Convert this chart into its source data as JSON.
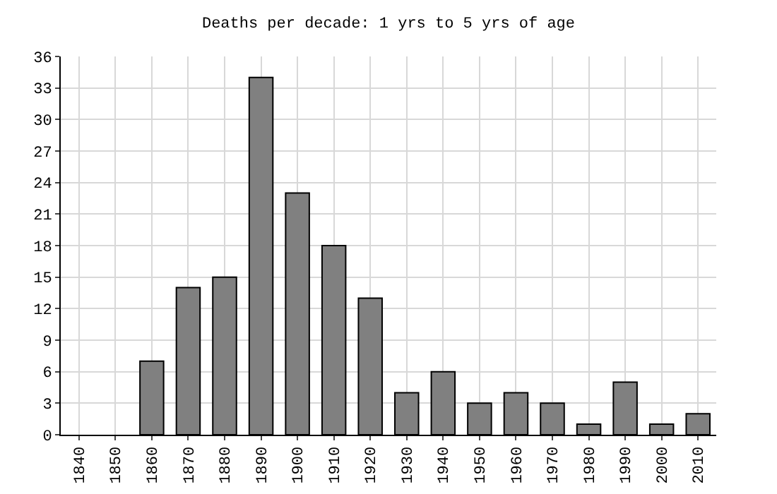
{
  "chart_data": {
    "type": "bar",
    "title": "Deaths per decade: 1 yrs to 5 yrs of age",
    "categories": [
      "1840",
      "1850",
      "1860",
      "1870",
      "1880",
      "1890",
      "1900",
      "1910",
      "1920",
      "1930",
      "1940",
      "1950",
      "1960",
      "1970",
      "1980",
      "1990",
      "2000",
      "2010"
    ],
    "values": [
      0,
      0,
      7,
      14,
      15,
      34,
      23,
      18,
      13,
      4,
      6,
      3,
      4,
      3,
      1,
      5,
      1,
      2
    ],
    "color": "#808080",
    "ylim": [
      0,
      36
    ],
    "yticks": [
      0,
      3,
      6,
      9,
      12,
      15,
      18,
      21,
      24,
      27,
      30,
      33,
      36
    ],
    "grid": true
  }
}
